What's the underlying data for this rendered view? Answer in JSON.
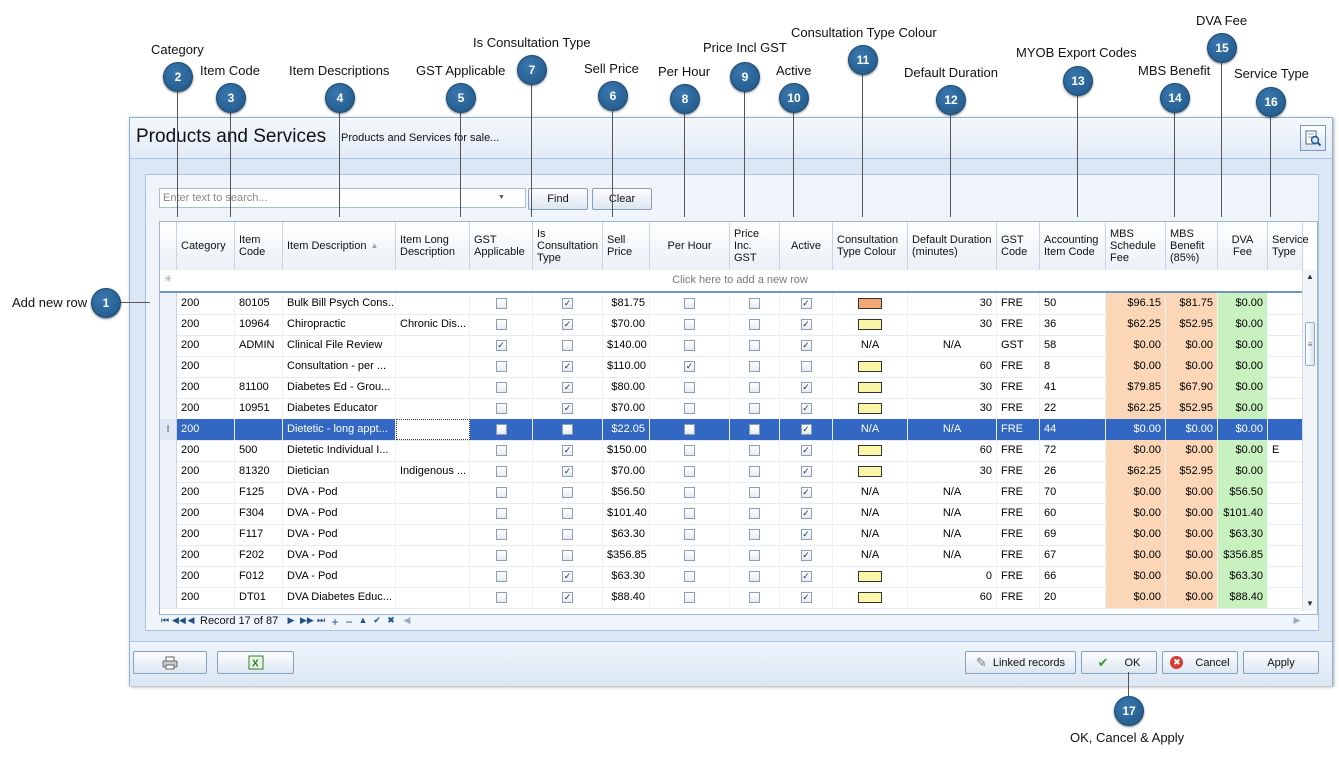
{
  "annotations": [
    {
      "num": "1",
      "label": "Add new row"
    },
    {
      "num": "2",
      "label": "Category"
    },
    {
      "num": "3",
      "label": "Item Code"
    },
    {
      "num": "4",
      "label": "Item Descriptions"
    },
    {
      "num": "5",
      "label": "GST Applicable"
    },
    {
      "num": "6",
      "label": "Sell Price"
    },
    {
      "num": "7",
      "label": "Is Consultation Type"
    },
    {
      "num": "8",
      "label": "Per Hour"
    },
    {
      "num": "9",
      "label": "Price Incl GST"
    },
    {
      "num": "10",
      "label": "Active"
    },
    {
      "num": "11",
      "label": "Consultation Type Colour"
    },
    {
      "num": "12",
      "label": "Default Duration"
    },
    {
      "num": "13",
      "label": "MYOB Export Codes"
    },
    {
      "num": "14",
      "label": "MBS Benefit"
    },
    {
      "num": "15",
      "label": "DVA Fee"
    },
    {
      "num": "16",
      "label": "Service Type"
    },
    {
      "num": "17",
      "label": "OK, Cancel & Apply"
    }
  ],
  "window": {
    "title": "Products and Services",
    "subtitle": "Products and Services for sale..."
  },
  "search": {
    "placeholder": "Enter text to search...",
    "find_label": "Find",
    "clear_label": "Clear"
  },
  "grid": {
    "columns": [
      {
        "key": "category",
        "label": "Category"
      },
      {
        "key": "item_code",
        "label": "Item Code"
      },
      {
        "key": "description",
        "label": "Item Description"
      },
      {
        "key": "long_description",
        "label": "Item Long Description"
      },
      {
        "key": "gst_applicable",
        "label": "GST Applicable"
      },
      {
        "key": "is_consultation",
        "label": "Is Consultation Type"
      },
      {
        "key": "sell_price",
        "label": "Sell Price"
      },
      {
        "key": "per_hour",
        "label": "Per Hour"
      },
      {
        "key": "price_inc_gst",
        "label": "Price Inc. GST"
      },
      {
        "key": "active",
        "label": "Active"
      },
      {
        "key": "colour",
        "label": "Consultation Type Colour"
      },
      {
        "key": "duration",
        "label": "Default Duration (minutes)"
      },
      {
        "key": "gst_code",
        "label": "GST Code"
      },
      {
        "key": "accounting_code",
        "label": "Accounting Item Code"
      },
      {
        "key": "mbs_fee",
        "label": "MBS Schedule Fee"
      },
      {
        "key": "mbs_benefit",
        "label": "MBS Benefit (85%)"
      },
      {
        "key": "dva_fee",
        "label": "DVA Fee"
      },
      {
        "key": "service_type",
        "label": "Service Type"
      }
    ],
    "new_row_text": "Click here to add a new row",
    "rows": [
      {
        "category": "200",
        "item_code": "80105",
        "description": "Bulk Bill Psych Cons...",
        "long_description": "",
        "gst_applicable": false,
        "is_consultation": true,
        "sell_price": "$81.75",
        "per_hour": false,
        "price_inc_gst": false,
        "active": true,
        "colour": "#f5a874",
        "duration": "30",
        "gst_code": "FRE",
        "accounting_code": "50",
        "mbs_fee": "$96.15",
        "mbs_benefit": "$81.75",
        "dva_fee": "$0.00",
        "service_type": ""
      },
      {
        "category": "200",
        "item_code": "10964",
        "description": "Chiropractic",
        "long_description": "Chronic Dis...",
        "gst_applicable": false,
        "is_consultation": true,
        "sell_price": "$70.00",
        "per_hour": false,
        "price_inc_gst": false,
        "active": true,
        "colour": "#fbf5a8",
        "duration": "30",
        "gst_code": "FRE",
        "accounting_code": "36",
        "mbs_fee": "$62.25",
        "mbs_benefit": "$52.95",
        "dva_fee": "$0.00",
        "service_type": ""
      },
      {
        "category": "200",
        "item_code": "ADMIN",
        "description": "Clinical File Review",
        "long_description": "",
        "gst_applicable": true,
        "is_consultation": false,
        "sell_price": "$140.00",
        "per_hour": false,
        "price_inc_gst": false,
        "active": true,
        "colour": "N/A",
        "duration": "N/A",
        "gst_code": "GST",
        "accounting_code": "58",
        "mbs_fee": "$0.00",
        "mbs_benefit": "$0.00",
        "dva_fee": "$0.00",
        "service_type": ""
      },
      {
        "category": "200",
        "item_code": "",
        "description": "Consultation - per ...",
        "long_description": "",
        "gst_applicable": false,
        "is_consultation": true,
        "sell_price": "$110.00",
        "per_hour": true,
        "price_inc_gst": false,
        "active": false,
        "colour": "#fbf5a8",
        "duration": "60",
        "gst_code": "FRE",
        "accounting_code": "8",
        "mbs_fee": "$0.00",
        "mbs_benefit": "$0.00",
        "dva_fee": "$0.00",
        "service_type": ""
      },
      {
        "category": "200",
        "item_code": "81100",
        "description": "Diabetes Ed - Grou...",
        "long_description": "",
        "gst_applicable": false,
        "is_consultation": true,
        "sell_price": "$80.00",
        "per_hour": false,
        "price_inc_gst": false,
        "active": true,
        "colour": "#fbf5a8",
        "duration": "30",
        "gst_code": "FRE",
        "accounting_code": "41",
        "mbs_fee": "$79.85",
        "mbs_benefit": "$67.90",
        "dva_fee": "$0.00",
        "service_type": ""
      },
      {
        "category": "200",
        "item_code": "10951",
        "description": "Diabetes Educator",
        "long_description": "",
        "gst_applicable": false,
        "is_consultation": true,
        "sell_price": "$70.00",
        "per_hour": false,
        "price_inc_gst": false,
        "active": true,
        "colour": "#fbf5a8",
        "duration": "30",
        "gst_code": "FRE",
        "accounting_code": "22",
        "mbs_fee": "$62.25",
        "mbs_benefit": "$52.95",
        "dva_fee": "$0.00",
        "service_type": ""
      },
      {
        "category": "200",
        "item_code": "",
        "description": "Dietetic - long appt...",
        "long_description": "",
        "gst_applicable": false,
        "is_consultation": false,
        "sell_price": "$22.05",
        "per_hour": false,
        "price_inc_gst": false,
        "active": true,
        "colour": "N/A",
        "duration": "N/A",
        "gst_code": "FRE",
        "accounting_code": "44",
        "mbs_fee": "$0.00",
        "mbs_benefit": "$0.00",
        "dva_fee": "$0.00",
        "service_type": "",
        "selected": true
      },
      {
        "category": "200",
        "item_code": "500",
        "description": "Dietetic Individual I...",
        "long_description": "",
        "gst_applicable": false,
        "is_consultation": true,
        "sell_price": "$150.00",
        "per_hour": false,
        "price_inc_gst": false,
        "active": true,
        "colour": "#fbf5a8",
        "duration": "60",
        "gst_code": "FRE",
        "accounting_code": "72",
        "mbs_fee": "$0.00",
        "mbs_benefit": "$0.00",
        "dva_fee": "$0.00",
        "service_type": "E"
      },
      {
        "category": "200",
        "item_code": "81320",
        "description": "Dietician",
        "long_description": "Indigenous ...",
        "gst_applicable": false,
        "is_consultation": true,
        "sell_price": "$70.00",
        "per_hour": false,
        "price_inc_gst": false,
        "active": true,
        "colour": "#fbf5a8",
        "duration": "30",
        "gst_code": "FRE",
        "accounting_code": "26",
        "mbs_fee": "$62.25",
        "mbs_benefit": "$52.95",
        "dva_fee": "$0.00",
        "service_type": ""
      },
      {
        "category": "200",
        "item_code": "F125",
        "description": "DVA - Pod",
        "long_description": "",
        "gst_applicable": false,
        "is_consultation": false,
        "sell_price": "$56.50",
        "per_hour": false,
        "price_inc_gst": false,
        "active": true,
        "colour": "N/A",
        "duration": "N/A",
        "gst_code": "FRE",
        "accounting_code": "70",
        "mbs_fee": "$0.00",
        "mbs_benefit": "$0.00",
        "dva_fee": "$56.50",
        "service_type": ""
      },
      {
        "category": "200",
        "item_code": "F304",
        "description": "DVA - Pod",
        "long_description": "",
        "gst_applicable": false,
        "is_consultation": false,
        "sell_price": "$101.40",
        "per_hour": false,
        "price_inc_gst": false,
        "active": true,
        "colour": "N/A",
        "duration": "N/A",
        "gst_code": "FRE",
        "accounting_code": "60",
        "mbs_fee": "$0.00",
        "mbs_benefit": "$0.00",
        "dva_fee": "$101.40",
        "service_type": ""
      },
      {
        "category": "200",
        "item_code": "F117",
        "description": "DVA - Pod",
        "long_description": "",
        "gst_applicable": false,
        "is_consultation": false,
        "sell_price": "$63.30",
        "per_hour": false,
        "price_inc_gst": false,
        "active": true,
        "colour": "N/A",
        "duration": "N/A",
        "gst_code": "FRE",
        "accounting_code": "69",
        "mbs_fee": "$0.00",
        "mbs_benefit": "$0.00",
        "dva_fee": "$63.30",
        "service_type": ""
      },
      {
        "category": "200",
        "item_code": "F202",
        "description": "DVA - Pod",
        "long_description": "",
        "gst_applicable": false,
        "is_consultation": false,
        "sell_price": "$356.85",
        "per_hour": false,
        "price_inc_gst": false,
        "active": true,
        "colour": "N/A",
        "duration": "N/A",
        "gst_code": "FRE",
        "accounting_code": "67",
        "mbs_fee": "$0.00",
        "mbs_benefit": "$0.00",
        "dva_fee": "$356.85",
        "service_type": ""
      },
      {
        "category": "200",
        "item_code": "F012",
        "description": "DVA - Pod",
        "long_description": "",
        "gst_applicable": false,
        "is_consultation": true,
        "sell_price": "$63.30",
        "per_hour": false,
        "price_inc_gst": false,
        "active": true,
        "colour": "#fbf5a8",
        "duration": "0",
        "gst_code": "FRE",
        "accounting_code": "66",
        "mbs_fee": "$0.00",
        "mbs_benefit": "$0.00",
        "dva_fee": "$63.30",
        "service_type": ""
      },
      {
        "category": "200",
        "item_code": "DT01",
        "description": "DVA Diabetes Educ...",
        "long_description": "",
        "gst_applicable": false,
        "is_consultation": true,
        "sell_price": "$88.40",
        "per_hour": false,
        "price_inc_gst": false,
        "active": true,
        "colour": "#fbf5a8",
        "duration": "60",
        "gst_code": "FRE",
        "accounting_code": "20",
        "mbs_fee": "$0.00",
        "mbs_benefit": "$0.00",
        "dva_fee": "$88.40",
        "service_type": ""
      }
    ]
  },
  "navigator": {
    "record_text": "Record 17 of 87"
  },
  "buttons": {
    "linked_records": "Linked records",
    "ok": "OK",
    "cancel": "Cancel",
    "apply": "Apply"
  },
  "icons": {
    "print": "printer-icon",
    "excel": "excel-export-icon",
    "linked": "link-icon",
    "ok": "checkmark-icon",
    "cancel": "cancel-icon",
    "title": "search-document-icon"
  },
  "colors": {
    "selected_row": "#3267c4",
    "mbs_cell": "#fbd7b7",
    "dva_cell": "#c9f1c0",
    "callout": "#1f5583"
  }
}
